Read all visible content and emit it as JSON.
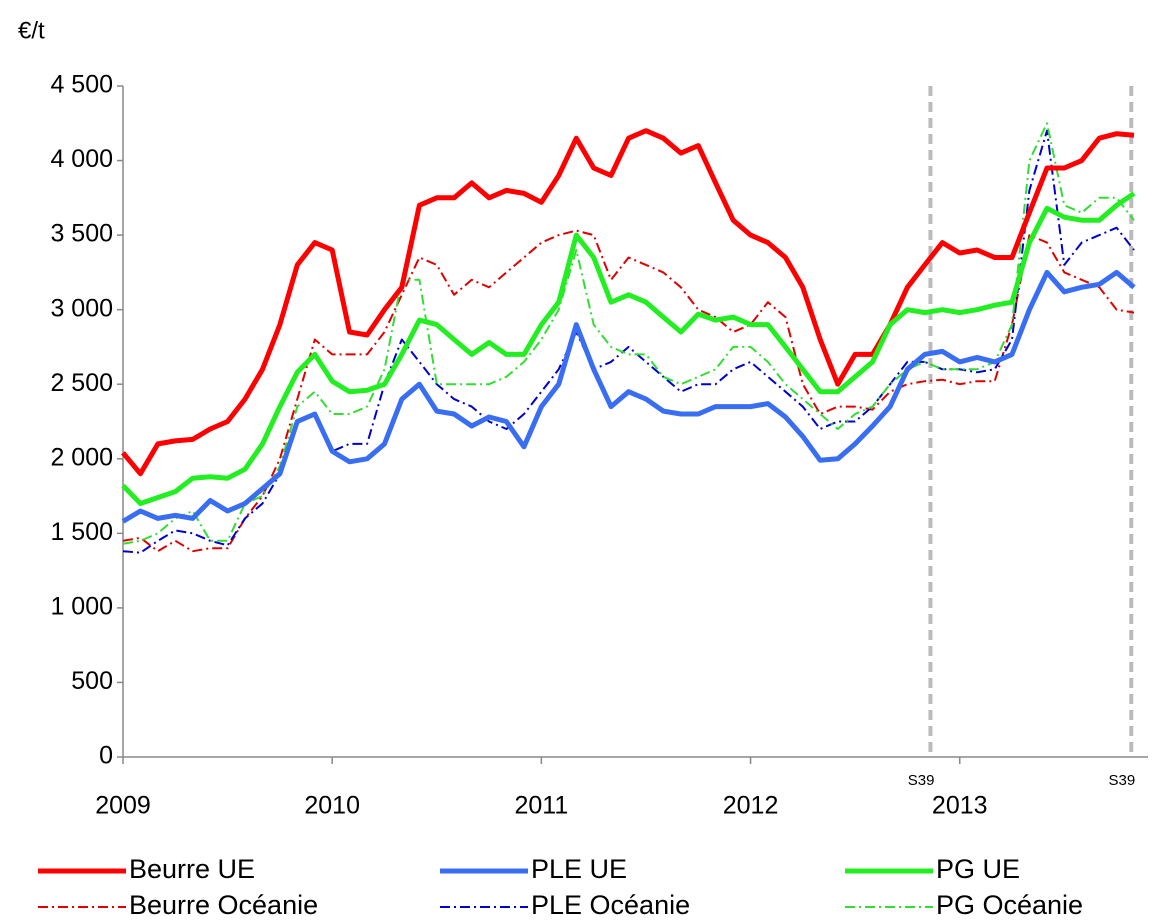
{
  "chart_data": {
    "type": "line",
    "y_label": "€/t",
    "x": [
      2009,
      2009.083,
      2009.167,
      2009.25,
      2009.333,
      2009.417,
      2009.5,
      2009.583,
      2009.667,
      2009.75,
      2009.833,
      2009.917,
      2010,
      2010.083,
      2010.167,
      2010.25,
      2010.333,
      2010.417,
      2010.5,
      2010.583,
      2010.667,
      2010.75,
      2010.833,
      2010.917,
      2011,
      2011.083,
      2011.167,
      2011.25,
      2011.333,
      2011.417,
      2011.5,
      2011.583,
      2011.667,
      2011.75,
      2011.833,
      2011.917,
      2012,
      2012.083,
      2012.167,
      2012.25,
      2012.333,
      2012.417,
      2012.5,
      2012.583,
      2012.667,
      2012.75,
      2012.833,
      2012.917,
      2013,
      2013.083,
      2013.167,
      2013.25,
      2013.333,
      2013.417,
      2013.5,
      2013.583,
      2013.667,
      2013.75,
      2013.833
    ],
    "series": [
      {
        "name": "Beurre UE",
        "color": "#ff0000",
        "style": "solid",
        "values": [
          2040,
          1900,
          2100,
          2120,
          2130,
          2200,
          2250,
          2400,
          2600,
          2900,
          3300,
          3450,
          3400,
          2850,
          2830,
          3000,
          3150,
          3700,
          3750,
          3750,
          3850,
          3750,
          3800,
          3780,
          3720,
          3900,
          4150,
          3950,
          3900,
          4150,
          4200,
          4150,
          4050,
          4100,
          3850,
          3600,
          3500,
          3450,
          3350,
          3150,
          2800,
          2500,
          2700,
          2700,
          2900,
          3150,
          3300,
          3450,
          3380,
          3400,
          3350,
          3350,
          3650,
          3950,
          3950,
          4000,
          4150,
          4180,
          4170
        ]
      },
      {
        "name": "PLE UE",
        "color": "#3a6ef2",
        "style": "solid",
        "values": [
          1580,
          1650,
          1600,
          1620,
          1600,
          1720,
          1650,
          1700,
          1800,
          1900,
          2250,
          2300,
          2050,
          1980,
          2000,
          2100,
          2400,
          2500,
          2320,
          2300,
          2220,
          2280,
          2250,
          2080,
          2350,
          2500,
          2900,
          2600,
          2350,
          2450,
          2400,
          2320,
          2300,
          2300,
          2350,
          2350,
          2350,
          2370,
          2280,
          2150,
          1990,
          2000,
          2100,
          2220,
          2350,
          2600,
          2700,
          2720,
          2650,
          2680,
          2650,
          2700,
          3000,
          3250,
          3120,
          3150,
          3170,
          3250,
          3150
        ]
      },
      {
        "name": "PG UE",
        "color": "#22ee22",
        "style": "solid",
        "values": [
          1820,
          1700,
          1740,
          1780,
          1870,
          1880,
          1870,
          1930,
          2100,
          2350,
          2580,
          2700,
          2520,
          2450,
          2460,
          2500,
          2700,
          2930,
          2900,
          2800,
          2700,
          2780,
          2700,
          2700,
          2900,
          3050,
          3500,
          3350,
          3050,
          3100,
          3050,
          2950,
          2850,
          2970,
          2930,
          2950,
          2900,
          2900,
          2750,
          2600,
          2450,
          2450,
          2550,
          2650,
          2900,
          3000,
          2980,
          3000,
          2980,
          3000,
          3030,
          3050,
          3450,
          3680,
          3620,
          3600,
          3600,
          3700,
          3780
        ]
      },
      {
        "name": "Beurre Océanie",
        "color": "#e00000",
        "style": "dash-dot",
        "values": [
          1450,
          1470,
          1380,
          1450,
          1380,
          1400,
          1400,
          1600,
          1750,
          2000,
          2400,
          2800,
          2700,
          2700,
          2700,
          2850,
          3100,
          3350,
          3300,
          3100,
          3200,
          3150,
          3250,
          3350,
          3450,
          3500,
          3530,
          3500,
          3200,
          3350,
          3300,
          3250,
          3150,
          3000,
          2950,
          2850,
          2900,
          3050,
          2950,
          2500,
          2300,
          2350,
          2350,
          2330,
          2450,
          2500,
          2520,
          2530,
          2500,
          2520,
          2520,
          2900,
          3500,
          3450,
          3250,
          3200,
          3150,
          3000,
          2980
        ]
      },
      {
        "name": "PLE Océanie",
        "color": "#0000cc",
        "style": "dash-dot",
        "values": [
          1380,
          1370,
          1450,
          1520,
          1500,
          1450,
          1420,
          1600,
          1700,
          1900,
          2250,
          2300,
          2050,
          2100,
          2100,
          2500,
          2800,
          2650,
          2500,
          2400,
          2350,
          2250,
          2200,
          2300,
          2450,
          2600,
          2850,
          2600,
          2650,
          2750,
          2650,
          2550,
          2450,
          2500,
          2500,
          2600,
          2650,
          2550,
          2450,
          2350,
          2200,
          2250,
          2250,
          2350,
          2500,
          2650,
          2650,
          2600,
          2600,
          2580,
          2600,
          2800,
          3800,
          4200,
          3300,
          3450,
          3500,
          3550,
          3400
        ]
      },
      {
        "name": "PG Océanie",
        "color": "#33dd33",
        "style": "dash-dot",
        "values": [
          1430,
          1450,
          1500,
          1600,
          1650,
          1450,
          1450,
          1700,
          1750,
          1950,
          2350,
          2450,
          2300,
          2300,
          2350,
          2600,
          3200,
          3200,
          2500,
          2500,
          2500,
          2500,
          2550,
          2650,
          2800,
          3000,
          3400,
          2900,
          2750,
          2700,
          2700,
          2550,
          2500,
          2550,
          2600,
          2750,
          2750,
          2650,
          2500,
          2400,
          2300,
          2200,
          2300,
          2350,
          2500,
          2600,
          2650,
          2600,
          2600,
          2600,
          2650,
          2900,
          4000,
          4250,
          3700,
          3650,
          3750,
          3750,
          3600
        ]
      }
    ],
    "xlim": [
      2009,
      2013.9
    ],
    "xticks": [
      2009,
      2010,
      2011,
      2012,
      2013
    ],
    "ylim": [
      0,
      4500
    ],
    "yticks": [
      0,
      500,
      {
        "value": 1000,
        "label": "1 000"
      },
      {
        "value": 1500,
        "label": "1 500"
      },
      {
        "value": 2000,
        "label": "2 000"
      },
      {
        "value": 2500,
        "label": "2 500"
      },
      {
        "value": 3000,
        "label": "3 000"
      },
      {
        "value": 3500,
        "label": "3 500"
      },
      {
        "value": 4000,
        "label": "4 000"
      },
      {
        "value": 4500,
        "label": "4 500"
      }
    ],
    "annotations": [
      {
        "x": 2012.86,
        "label": "S39"
      },
      {
        "x": 2013.82,
        "label": "S39"
      }
    ],
    "grid": false,
    "legend": "bottom"
  }
}
